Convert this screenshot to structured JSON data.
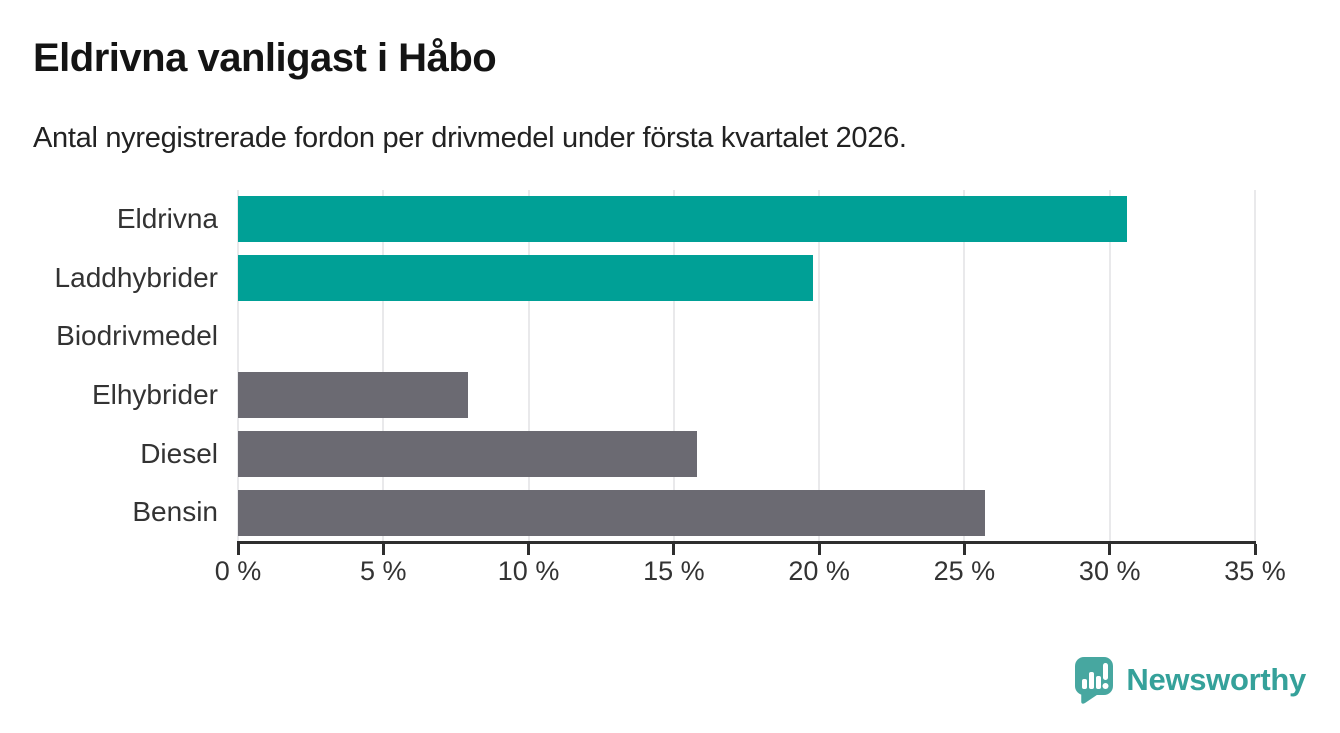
{
  "header": {
    "title": "Eldrivna vanligast i Håbo",
    "subtitle": "Antal nyregistrerade fordon per drivmedel under första kvartalet 2026."
  },
  "chart_data": {
    "type": "bar",
    "orientation": "horizontal",
    "title": "Eldrivna vanligast i Håbo",
    "subtitle": "Antal nyregistrerade fordon per drivmedel under första kvartalet 2026.",
    "categories": [
      "Eldrivna",
      "Laddhybrider",
      "Biodrivmedel",
      "Elhybrider",
      "Diesel",
      "Bensin"
    ],
    "values": [
      30.6,
      19.8,
      0,
      7.9,
      15.8,
      25.7
    ],
    "unit": "%",
    "bar_colors": [
      "#00a096",
      "#00a096",
      "#6b6a72",
      "#6b6a72",
      "#6b6a72",
      "#6b6a72"
    ],
    "highlight_color": "#00a096",
    "default_color": "#6b6a72",
    "xlim": [
      0,
      35
    ],
    "xtick_step": 5,
    "xtick_labels": [
      "0 %",
      "5 %",
      "10 %",
      "15 %",
      "20 %",
      "25 %",
      "30 %",
      "35 %"
    ],
    "grid": true,
    "legend": "none",
    "xlabel": "",
    "ylabel": ""
  },
  "branding": {
    "logo_text": "Newsworthy",
    "logo_icon": "bar-chart-speech-bubble-icon",
    "logo_icon_color": "#47a7a0",
    "logo_text_color": "#35a19a"
  }
}
